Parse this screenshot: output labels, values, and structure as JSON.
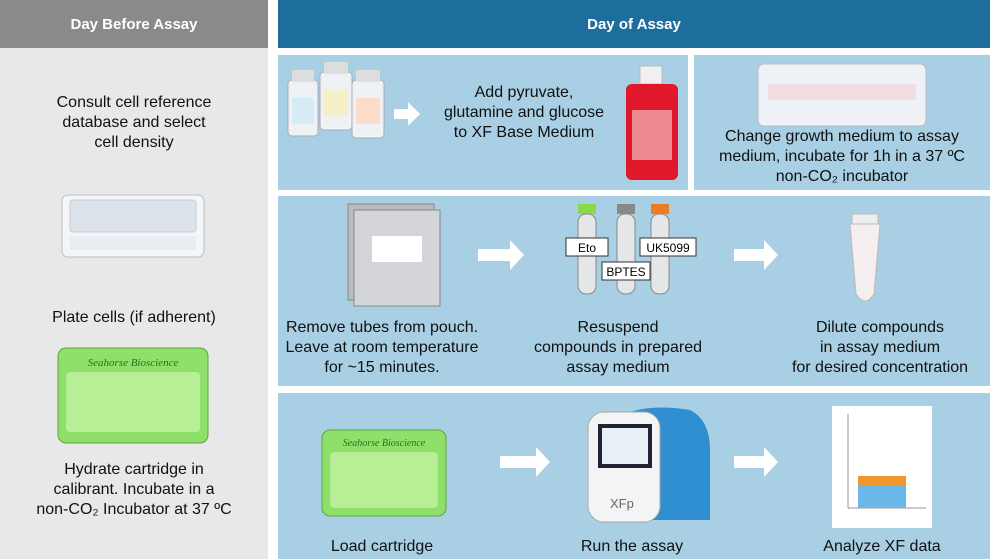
{
  "left": {
    "header": "Day Before Assay",
    "steps": [
      "Consult cell reference\ndatabase and select\ncell density",
      "Plate cells (if adherent)",
      "Hydrate cartridge in\ncalibrant. Incubate in a\nnon-CO₂ Incubator at 37 ºC"
    ]
  },
  "right": {
    "header": "Day of Assay",
    "row1": [
      "Add pyruvate,\nglutamine and glucose\nto XF Base Medium",
      "Change growth medium to assay\nmedium, incubate for 1h in a 37 ºC\nnon-CO₂ incubator"
    ],
    "row2": [
      "Remove tubes from pouch.\nLeave at room temperature\nfor ~15 minutes.",
      "Resuspend\ncompounds in prepared\nassay medium",
      "Dilute compounds\nin assay medium\nfor desired concentration"
    ],
    "tube_labels": [
      "Eto",
      "BPTES",
      "UK5099"
    ],
    "row3": [
      "Load cartridge",
      "Run the assay",
      "Analyze XF data"
    ]
  },
  "cartridge_brand": "Seahorse Bioscience",
  "instrument_label": "XFp"
}
